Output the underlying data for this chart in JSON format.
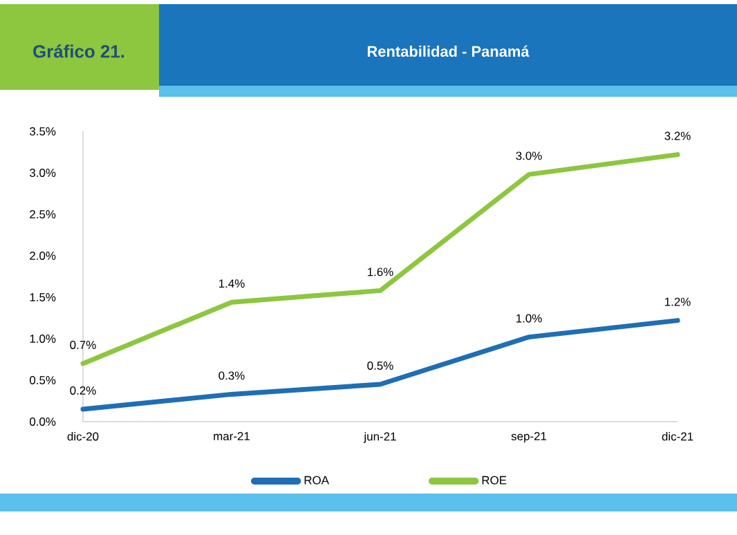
{
  "chart_data": {
    "type": "line",
    "title": "Rentabilidad - Panamá",
    "subtitle": "Gráfico 21.",
    "categories": [
      "dic-20",
      "mar-21",
      "jun-21",
      "sep-21",
      "dic-21"
    ],
    "series": [
      {
        "name": "ROA",
        "color": "#1f6eb5",
        "values": [
          0.15,
          0.33,
          0.45,
          1.02,
          1.22
        ],
        "value_labels": [
          "0.2%",
          "0.3%",
          "0.5%",
          "1.0%",
          "1.2%"
        ]
      },
      {
        "name": "ROE",
        "color": "#8dc63f",
        "values": [
          0.7,
          1.44,
          1.58,
          2.98,
          3.22
        ],
        "value_labels": [
          "0.7%",
          "1.4%",
          "1.6%",
          "3.0%",
          "3.2%"
        ]
      }
    ],
    "ylim": [
      0,
      3.5
    ],
    "yticks": [
      {
        "value": 0,
        "label": "0.0%"
      },
      {
        "value": 0.5,
        "label": "0.5%"
      },
      {
        "value": 1,
        "label": "1.0%"
      },
      {
        "value": 1.5,
        "label": "1.5%"
      },
      {
        "value": 2,
        "label": "2.0%"
      },
      {
        "value": 2.5,
        "label": "2.5%"
      },
      {
        "value": 3,
        "label": "3.0%"
      },
      {
        "value": 3.5,
        "label": "3.5%"
      }
    ],
    "legend": "bottom",
    "grid": false,
    "marker": "none",
    "line_style": "solid"
  }
}
